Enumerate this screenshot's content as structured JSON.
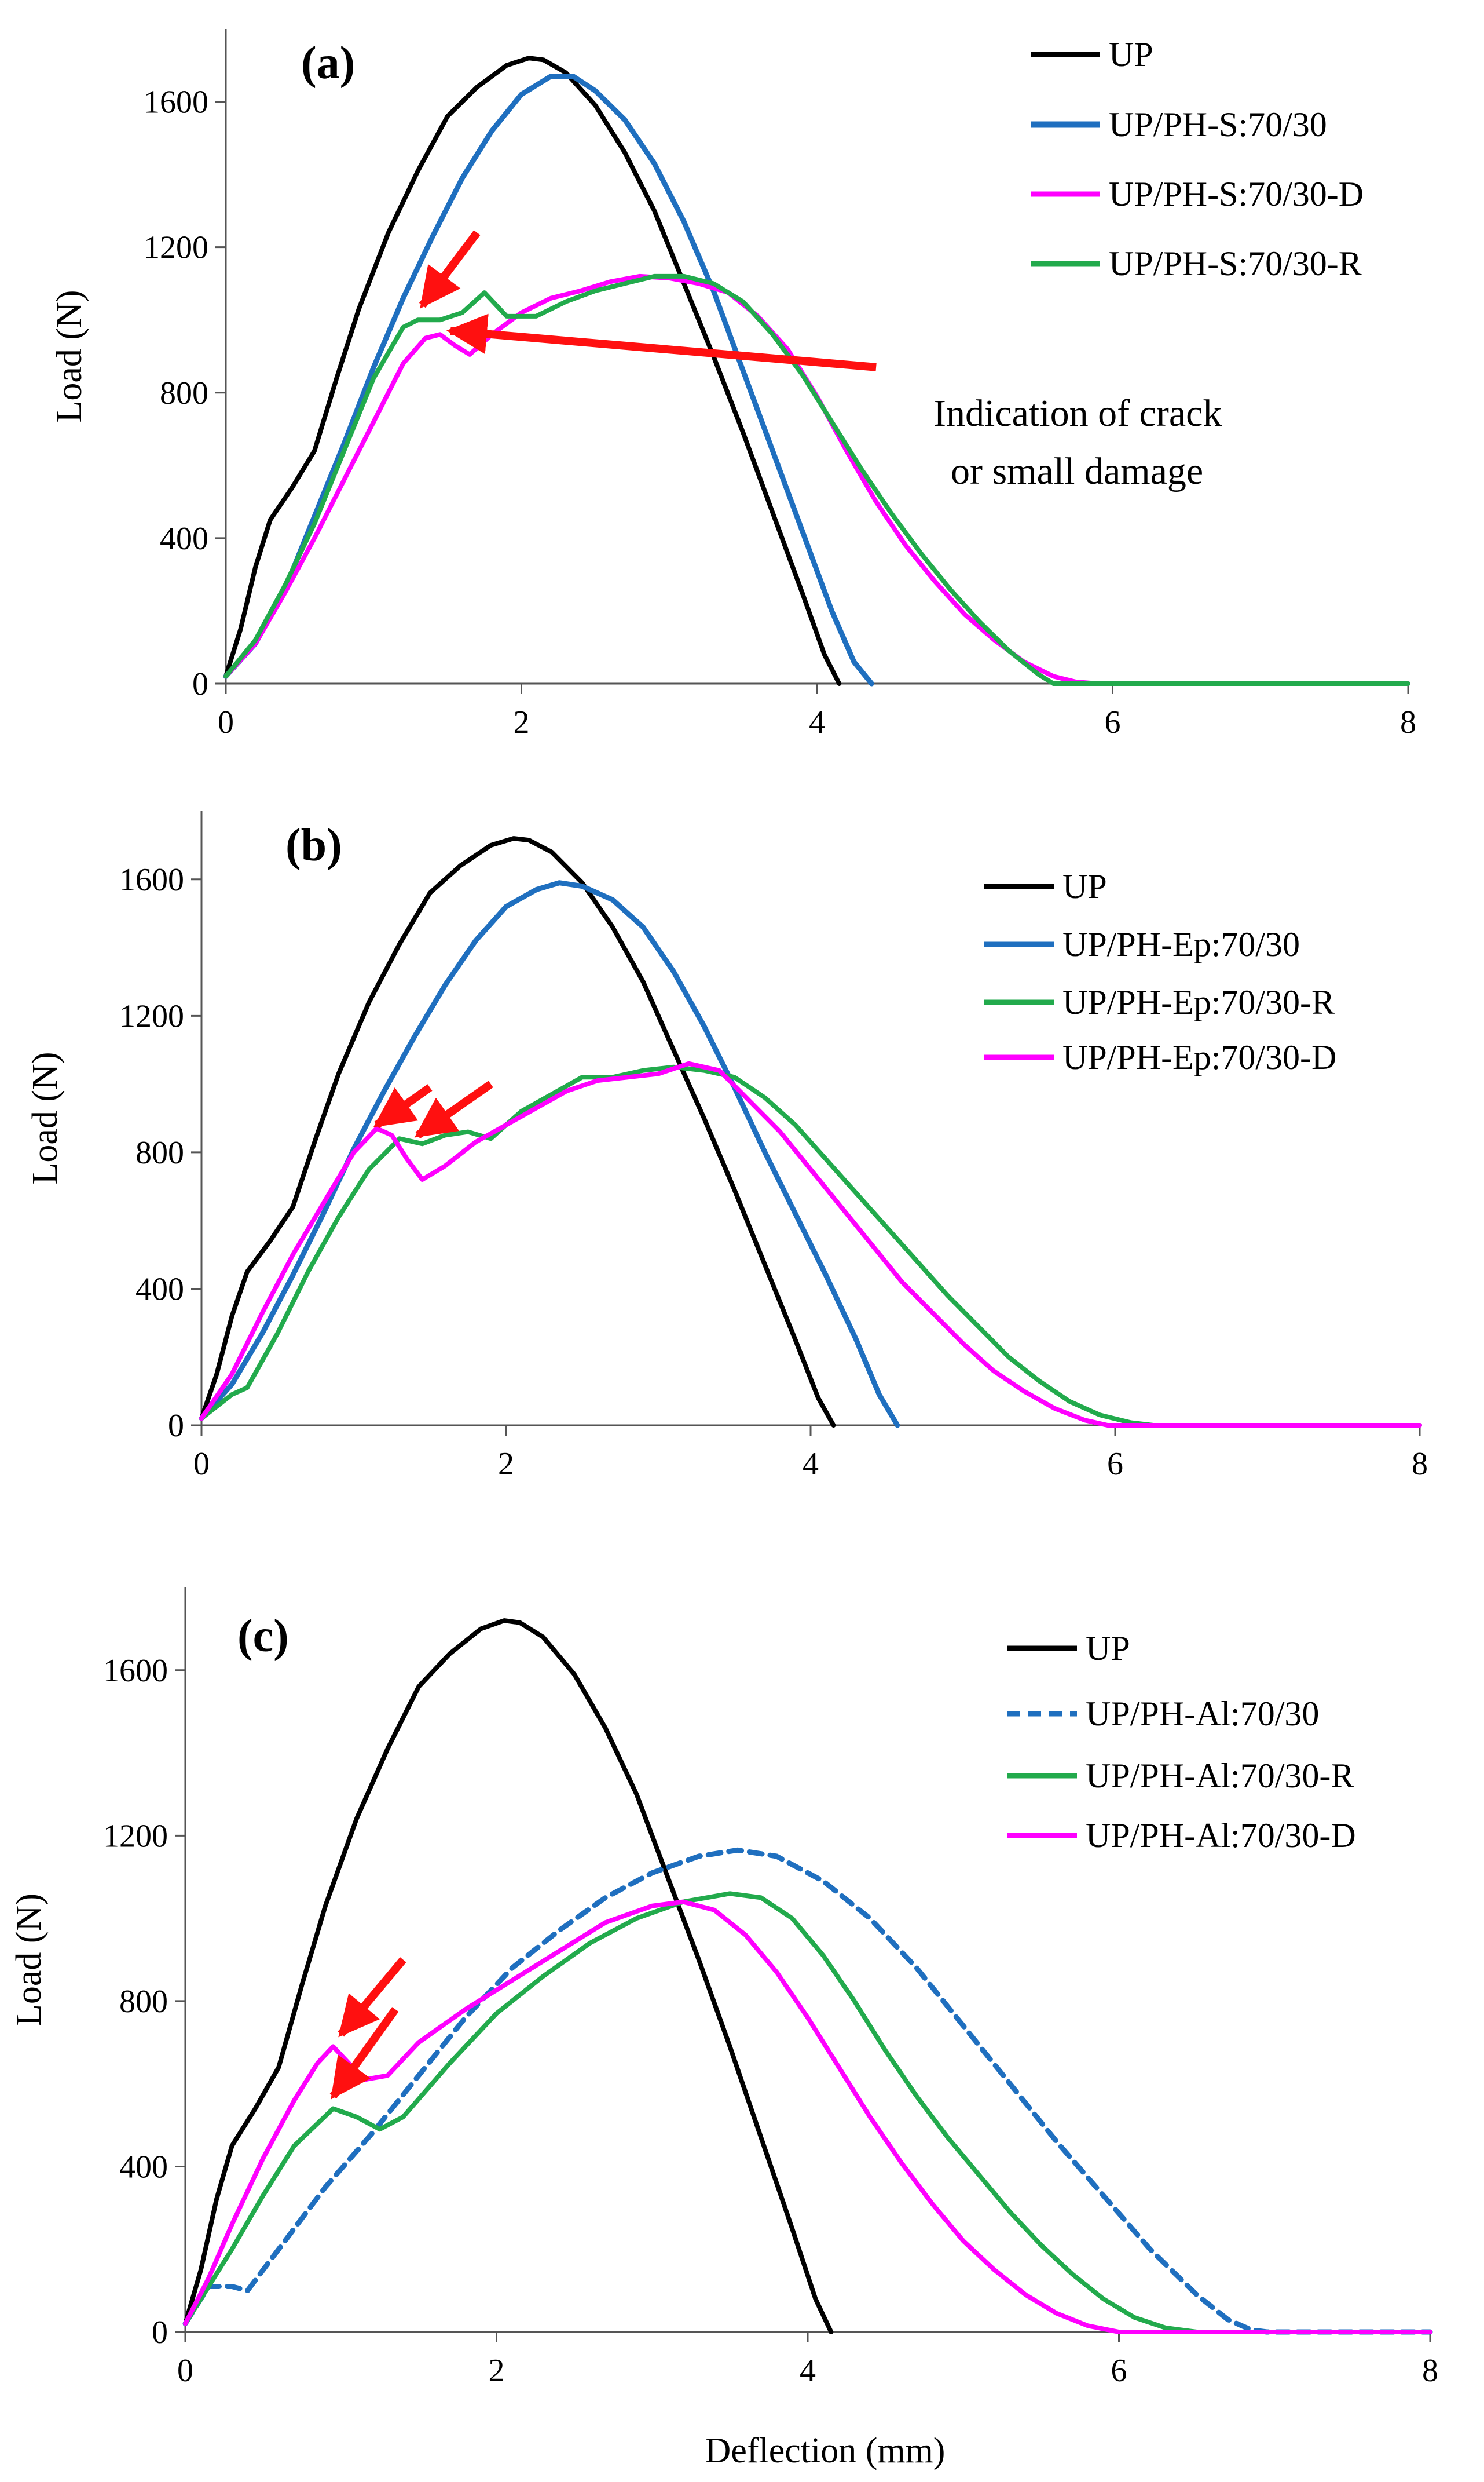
{
  "colors": {
    "UP": "#000000",
    "S": "#1F6FBF",
    "D": "#FF00FF",
    "R": "#22AA4C",
    "arrow": "#FF1010",
    "axis": "#555555"
  },
  "chart_data": [
    {
      "type": "line",
      "panel_label": "(a)",
      "xlabel": "",
      "ylabel": "Load (N)",
      "xlim": [
        0,
        8
      ],
      "ylim": [
        0,
        1800
      ],
      "x_ticks": [
        0,
        2,
        4,
        6,
        8
      ],
      "y_ticks": [
        0,
        400,
        800,
        1200,
        1600
      ],
      "legend": "top-right",
      "annotation": [
        "Indication of crack",
        "or small damage"
      ],
      "arrows": [
        {
          "from": [
            1.7,
            1240
          ],
          "to": [
            1.33,
            1040
          ]
        },
        {
          "from": [
            4.4,
            870
          ],
          "to": [
            1.52,
            970
          ]
        }
      ],
      "series": [
        {
          "name": "UP",
          "color_key": "UP",
          "dash": false,
          "x": [
            0,
            0.1,
            0.2,
            0.3,
            0.45,
            0.6,
            0.75,
            0.9,
            1.1,
            1.3,
            1.5,
            1.7,
            1.9,
            2.05,
            2.15,
            2.3,
            2.5,
            2.7,
            2.9,
            3.1,
            3.3,
            3.5,
            3.7,
            3.9,
            4.05,
            4.15
          ],
          "y": [
            20,
            150,
            320,
            450,
            540,
            640,
            840,
            1030,
            1240,
            1410,
            1560,
            1640,
            1700,
            1720,
            1715,
            1680,
            1590,
            1460,
            1300,
            1100,
            900,
            690,
            470,
            250,
            80,
            0
          ]
        },
        {
          "name": "UP/PH-S:70/30",
          "color_key": "S",
          "dash": false,
          "x": [
            0,
            0.2,
            0.4,
            0.6,
            0.8,
            1.0,
            1.2,
            1.4,
            1.6,
            1.8,
            2.0,
            2.2,
            2.35,
            2.5,
            2.7,
            2.9,
            3.1,
            3.3,
            3.5,
            3.7,
            3.9,
            4.1,
            4.25,
            4.37
          ],
          "y": [
            20,
            110,
            260,
            460,
            660,
            870,
            1060,
            1230,
            1390,
            1520,
            1620,
            1670,
            1670,
            1630,
            1550,
            1430,
            1270,
            1080,
            860,
            640,
            420,
            200,
            60,
            0
          ]
        },
        {
          "name": "UP/PH-S:70/30-D",
          "color_key": "D",
          "dash": false,
          "x": [
            0,
            0.2,
            0.4,
            0.6,
            0.8,
            1.0,
            1.2,
            1.35,
            1.45,
            1.55,
            1.65,
            1.8,
            2.0,
            2.2,
            2.4,
            2.6,
            2.8,
            3.0,
            3.2,
            3.4,
            3.6,
            3.8,
            4.0,
            4.2,
            4.4,
            4.6,
            4.8,
            5.0,
            5.2,
            5.4,
            5.6,
            5.75,
            5.9,
            6.5,
            8.0
          ],
          "y": [
            20,
            110,
            250,
            400,
            560,
            720,
            880,
            950,
            960,
            930,
            905,
            960,
            1020,
            1060,
            1080,
            1105,
            1120,
            1115,
            1100,
            1075,
            1010,
            920,
            790,
            640,
            500,
            380,
            280,
            190,
            120,
            60,
            20,
            5,
            0,
            0,
            0
          ]
        },
        {
          "name": "UP/PH-S:70/30-R",
          "color_key": "R",
          "dash": false,
          "x": [
            0,
            0.2,
            0.4,
            0.6,
            0.8,
            1.0,
            1.2,
            1.3,
            1.45,
            1.6,
            1.75,
            1.9,
            2.1,
            2.3,
            2.5,
            2.7,
            2.9,
            3.1,
            3.3,
            3.5,
            3.7,
            3.9,
            4.1,
            4.3,
            4.5,
            4.7,
            4.9,
            5.1,
            5.3,
            5.5,
            5.6,
            6.0,
            8.0
          ],
          "y": [
            20,
            120,
            270,
            440,
            640,
            840,
            980,
            1000,
            1000,
            1020,
            1075,
            1010,
            1010,
            1050,
            1080,
            1100,
            1120,
            1120,
            1100,
            1050,
            960,
            850,
            720,
            590,
            470,
            360,
            260,
            170,
            90,
            25,
            0,
            0,
            0
          ]
        }
      ]
    },
    {
      "type": "line",
      "panel_label": "(b)",
      "xlabel": "",
      "ylabel": "Load (N)",
      "xlim": [
        0,
        8
      ],
      "ylim": [
        0,
        1800
      ],
      "x_ticks": [
        0,
        2,
        4,
        6,
        8
      ],
      "y_ticks": [
        0,
        400,
        800,
        1200,
        1600
      ],
      "legend": "right",
      "arrows": [
        {
          "from": [
            1.5,
            990
          ],
          "to": [
            1.15,
            880
          ]
        },
        {
          "from": [
            1.9,
            1000
          ],
          "to": [
            1.42,
            850
          ]
        }
      ],
      "series": [
        {
          "name": "UP",
          "color_key": "UP",
          "dash": false,
          "x": [
            0,
            0.1,
            0.2,
            0.3,
            0.45,
            0.6,
            0.75,
            0.9,
            1.1,
            1.3,
            1.5,
            1.7,
            1.9,
            2.05,
            2.15,
            2.3,
            2.5,
            2.7,
            2.9,
            3.1,
            3.3,
            3.5,
            3.7,
            3.9,
            4.05,
            4.15
          ],
          "y": [
            20,
            150,
            320,
            450,
            540,
            640,
            840,
            1030,
            1240,
            1410,
            1560,
            1640,
            1700,
            1720,
            1715,
            1680,
            1590,
            1460,
            1300,
            1100,
            900,
            690,
            470,
            250,
            80,
            0
          ]
        },
        {
          "name": "UP/PH-Ep:70/30",
          "color_key": "S",
          "dash": false,
          "x": [
            0,
            0.2,
            0.4,
            0.6,
            0.8,
            1.0,
            1.2,
            1.4,
            1.6,
            1.8,
            2.0,
            2.2,
            2.35,
            2.5,
            2.7,
            2.9,
            3.1,
            3.3,
            3.5,
            3.7,
            3.9,
            4.1,
            4.3,
            4.45,
            4.57
          ],
          "y": [
            20,
            120,
            270,
            440,
            620,
            810,
            980,
            1140,
            1290,
            1420,
            1520,
            1570,
            1590,
            1580,
            1540,
            1460,
            1330,
            1170,
            990,
            800,
            620,
            440,
            250,
            90,
            0
          ]
        },
        {
          "name": "UP/PH-Ep:70/30-R",
          "color_key": "R",
          "dash": false,
          "x": [
            0,
            0.2,
            0.3,
            0.5,
            0.7,
            0.9,
            1.1,
            1.3,
            1.45,
            1.6,
            1.75,
            1.9,
            2.1,
            2.3,
            2.5,
            2.7,
            2.9,
            3.1,
            3.3,
            3.5,
            3.7,
            3.9,
            4.1,
            4.3,
            4.5,
            4.7,
            4.9,
            5.1,
            5.3,
            5.5,
            5.7,
            5.9,
            6.1,
            6.25,
            6.5,
            8.0
          ],
          "y": [
            20,
            90,
            110,
            270,
            450,
            610,
            750,
            840,
            825,
            850,
            860,
            840,
            920,
            970,
            1020,
            1020,
            1040,
            1050,
            1040,
            1020,
            960,
            880,
            780,
            680,
            580,
            480,
            380,
            290,
            200,
            130,
            70,
            30,
            8,
            0,
            0,
            0
          ]
        },
        {
          "name": "UP/PH-Ep:70/30-D",
          "color_key": "D",
          "dash": false,
          "x": [
            0,
            0.2,
            0.4,
            0.6,
            0.8,
            1.0,
            1.15,
            1.25,
            1.35,
            1.45,
            1.6,
            1.8,
            2.0,
            2.2,
            2.4,
            2.6,
            2.8,
            3.0,
            3.2,
            3.4,
            3.6,
            3.8,
            4.0,
            4.2,
            4.4,
            4.6,
            4.8,
            5.0,
            5.2,
            5.4,
            5.6,
            5.8,
            5.95,
            6.0,
            8.0
          ],
          "y": [
            20,
            150,
            330,
            500,
            650,
            800,
            870,
            850,
            780,
            720,
            760,
            830,
            880,
            930,
            980,
            1010,
            1020,
            1030,
            1060,
            1040,
            950,
            860,
            750,
            640,
            530,
            420,
            330,
            240,
            160,
            100,
            50,
            15,
            0,
            0,
            0
          ]
        }
      ]
    },
    {
      "type": "line",
      "panel_label": "(c)",
      "xlabel": "Deflection (mm)",
      "ylabel": "Load (N)",
      "xlim": [
        0,
        8
      ],
      "ylim": [
        0,
        1800
      ],
      "x_ticks": [
        0,
        2,
        4,
        6,
        8
      ],
      "y_ticks": [
        0,
        400,
        800,
        1200,
        1600
      ],
      "legend": "top-right",
      "arrows": [
        {
          "from": [
            1.4,
            900
          ],
          "to": [
            1.0,
            720
          ]
        },
        {
          "from": [
            1.35,
            780
          ],
          "to": [
            0.95,
            570
          ]
        }
      ],
      "series": [
        {
          "name": "UP",
          "color_key": "UP",
          "dash": false,
          "x": [
            0,
            0.1,
            0.2,
            0.3,
            0.45,
            0.6,
            0.75,
            0.9,
            1.1,
            1.3,
            1.5,
            1.7,
            1.9,
            2.05,
            2.15,
            2.3,
            2.5,
            2.7,
            2.9,
            3.1,
            3.3,
            3.5,
            3.7,
            3.9,
            4.05,
            4.15
          ],
          "y": [
            20,
            150,
            320,
            450,
            540,
            640,
            840,
            1030,
            1240,
            1410,
            1560,
            1640,
            1700,
            1720,
            1715,
            1680,
            1590,
            1460,
            1300,
            1100,
            900,
            690,
            470,
            250,
            80,
            0
          ]
        },
        {
          "name": "UP/PH-Al:70/30",
          "color_key": "S",
          "dash": true,
          "x": [
            0,
            0.15,
            0.3,
            0.4,
            0.6,
            0.9,
            1.2,
            1.5,
            1.8,
            2.1,
            2.4,
            2.7,
            3.0,
            3.3,
            3.55,
            3.8,
            4.1,
            4.4,
            4.7,
            5.0,
            5.3,
            5.6,
            5.9,
            6.2,
            6.5,
            6.7,
            6.85,
            6.95,
            8.0
          ],
          "y": [
            20,
            110,
            110,
            100,
            200,
            350,
            480,
            620,
            760,
            880,
            970,
            1050,
            1110,
            1150,
            1165,
            1150,
            1090,
            1000,
            880,
            740,
            600,
            460,
            330,
            200,
            90,
            30,
            5,
            0,
            0
          ]
        },
        {
          "name": "UP/PH-Al:70/30-R",
          "color_key": "R",
          "dash": false,
          "x": [
            0,
            0.15,
            0.3,
            0.5,
            0.7,
            0.95,
            1.1,
            1.25,
            1.4,
            1.7,
            2.0,
            2.3,
            2.6,
            2.9,
            3.2,
            3.5,
            3.7,
            3.9,
            4.1,
            4.3,
            4.5,
            4.7,
            4.9,
            5.1,
            5.3,
            5.5,
            5.7,
            5.9,
            6.1,
            6.3,
            6.5,
            6.7,
            8.0
          ],
          "y": [
            20,
            110,
            200,
            330,
            450,
            540,
            520,
            490,
            520,
            650,
            770,
            860,
            940,
            1000,
            1040,
            1060,
            1050,
            1000,
            910,
            800,
            680,
            570,
            470,
            380,
            290,
            210,
            140,
            80,
            35,
            10,
            0,
            0,
            0
          ]
        },
        {
          "name": "UP/PH-Al:70/30-D",
          "color_key": "D",
          "dash": false,
          "x": [
            0,
            0.15,
            0.3,
            0.5,
            0.7,
            0.85,
            0.95,
            1.05,
            1.15,
            1.3,
            1.5,
            1.8,
            2.1,
            2.4,
            2.7,
            3.0,
            3.2,
            3.4,
            3.6,
            3.8,
            4.0,
            4.2,
            4.4,
            4.6,
            4.8,
            5.0,
            5.2,
            5.4,
            5.6,
            5.8,
            6.0,
            6.2,
            8.0
          ],
          "y": [
            20,
            130,
            260,
            420,
            560,
            650,
            690,
            650,
            610,
            620,
            700,
            780,
            850,
            920,
            990,
            1030,
            1040,
            1020,
            960,
            870,
            760,
            640,
            520,
            410,
            310,
            220,
            150,
            90,
            45,
            15,
            0,
            0,
            0
          ]
        }
      ]
    }
  ]
}
